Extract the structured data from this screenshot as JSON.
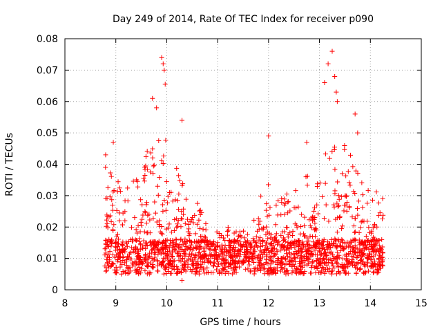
{
  "chart_data": {
    "type": "scatter",
    "title": "Day 249 of 2014, Rate Of TEC Index for receiver p090",
    "xlabel": "GPS time / hours",
    "ylabel": "ROTI / TECUs",
    "xlim": [
      8,
      15
    ],
    "ylim": [
      0,
      0.08
    ],
    "xticks": [
      "8",
      "9",
      "10",
      "11",
      "12",
      "13",
      "14",
      "15"
    ],
    "yticks": [
      "0",
      "0.01",
      "0.02",
      "0.03",
      "0.04",
      "0.05",
      "0.06",
      "0.07",
      "0.08"
    ],
    "grid": true,
    "marker": "+",
    "color": "#ff0000",
    "series": [
      {
        "name": "ROTI",
        "x_range": [
          8.78,
          14.25
        ],
        "envelope_hours": [
          8.8,
          9.0,
          9.2,
          9.4,
          9.6,
          9.8,
          10.0,
          10.2,
          10.4,
          10.6,
          10.8,
          11.0,
          11.2,
          11.4,
          11.6,
          11.8,
          12.0,
          12.2,
          12.4,
          12.6,
          12.8,
          13.0,
          13.2,
          13.4,
          13.6,
          13.8,
          14.0,
          14.2
        ],
        "envelope_upper": [
          0.04,
          0.035,
          0.033,
          0.036,
          0.045,
          0.055,
          0.05,
          0.042,
          0.035,
          0.028,
          0.024,
          0.02,
          0.02,
          0.019,
          0.02,
          0.03,
          0.038,
          0.035,
          0.03,
          0.033,
          0.038,
          0.045,
          0.055,
          0.048,
          0.045,
          0.035,
          0.033,
          0.03
        ],
        "notable_points": [
          {
            "x": 8.8,
            "y": 0.043
          },
          {
            "x": 8.95,
            "y": 0.047
          },
          {
            "x": 9.72,
            "y": 0.061
          },
          {
            "x": 9.8,
            "y": 0.058
          },
          {
            "x": 9.9,
            "y": 0.074
          },
          {
            "x": 9.93,
            "y": 0.072
          },
          {
            "x": 9.95,
            "y": 0.07
          },
          {
            "x": 9.97,
            "y": 0.0655
          },
          {
            "x": 10.3,
            "y": 0.054
          },
          {
            "x": 10.3,
            "y": 0.003
          },
          {
            "x": 12.0,
            "y": 0.049
          },
          {
            "x": 12.75,
            "y": 0.047
          },
          {
            "x": 13.1,
            "y": 0.066
          },
          {
            "x": 13.17,
            "y": 0.072
          },
          {
            "x": 13.25,
            "y": 0.076
          },
          {
            "x": 13.3,
            "y": 0.068
          },
          {
            "x": 13.33,
            "y": 0.063
          },
          {
            "x": 13.35,
            "y": 0.06
          },
          {
            "x": 13.7,
            "y": 0.056
          },
          {
            "x": 13.75,
            "y": 0.05
          }
        ]
      }
    ]
  }
}
